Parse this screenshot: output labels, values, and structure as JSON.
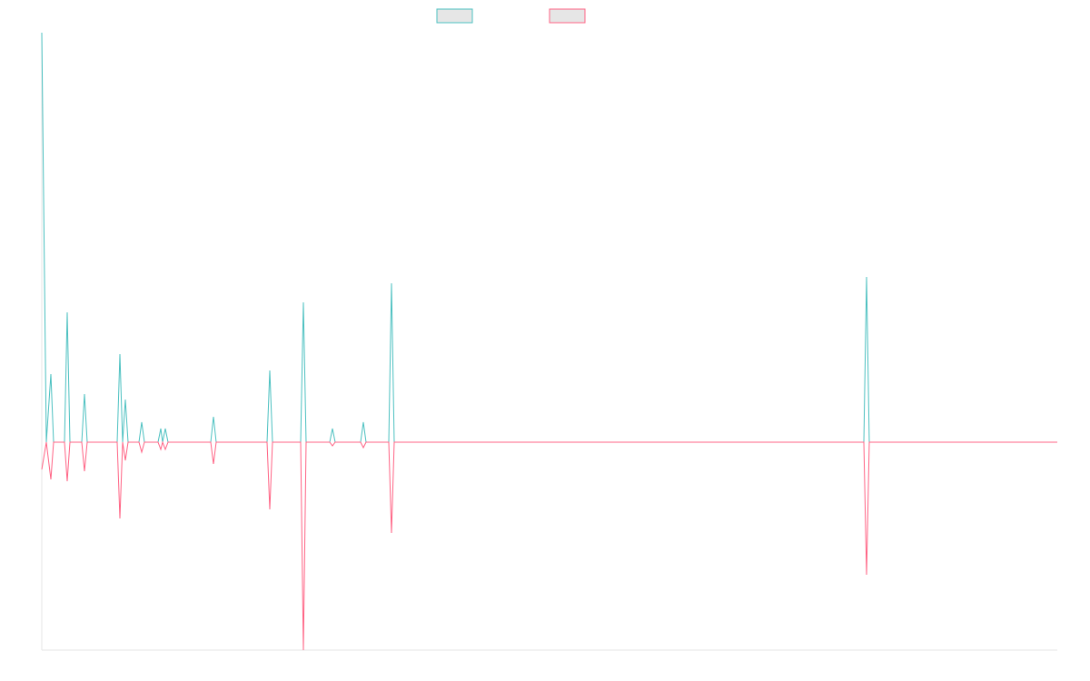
{
  "chart_data": {
    "type": "line",
    "x": [
      0,
      5,
      10,
      13,
      25,
      28,
      31,
      44,
      47,
      50,
      83,
      86,
      89,
      92,
      95,
      107,
      110,
      113,
      128,
      131,
      133,
      136,
      139,
      186,
      189,
      192,
      248,
      251,
      254,
      285,
      288,
      291,
      317,
      320,
      323,
      351,
      354,
      357,
      382,
      385,
      388,
      905,
      908,
      911,
      1118
    ],
    "xlim": [
      0,
      1118
    ],
    "ylim": [
      -229,
      451
    ],
    "series": [
      {
        "color": "#4bc0c0",
        "values": [
          451,
          0,
          75,
          0,
          0,
          143,
          0,
          0,
          53,
          0,
          0,
          97,
          0,
          47,
          0,
          0,
          22,
          0,
          0,
          15,
          0,
          15,
          0,
          0,
          28,
          0,
          0,
          79,
          0,
          0,
          154,
          0,
          0,
          15,
          0,
          0,
          22,
          0,
          0,
          175,
          0,
          0,
          182,
          0,
          0
        ]
      },
      {
        "color": "#ff6384",
        "values": [
          -30,
          0,
          -41,
          0,
          0,
          -43,
          0,
          0,
          -32,
          0,
          0,
          -84,
          0,
          -20,
          0,
          0,
          -11,
          0,
          0,
          -8,
          0,
          -8,
          0,
          0,
          -24,
          0,
          0,
          -74,
          0,
          0,
          -229,
          0,
          0,
          -4,
          0,
          0,
          -6,
          0,
          0,
          -100,
          0,
          0,
          -146,
          0,
          0
        ]
      }
    ]
  }
}
